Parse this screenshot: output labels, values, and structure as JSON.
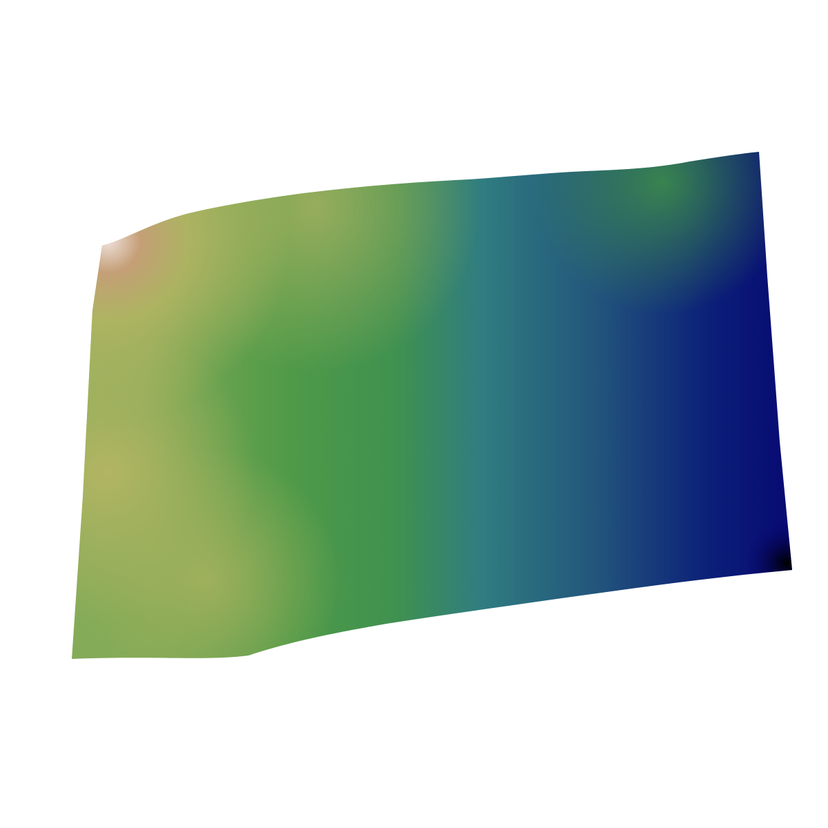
{
  "scene": {
    "background_color": "#ffffff",
    "surface_type": "3d-terrain-surface",
    "colormap": "gist_earth",
    "colormap_stops": [
      {
        "position": 0.0,
        "color": "#000000"
      },
      {
        "position": 0.08,
        "color": "#070070"
      },
      {
        "position": 0.2,
        "color": "#15287a"
      },
      {
        "position": 0.35,
        "color": "#307d80"
      },
      {
        "position": 0.5,
        "color": "#3f9148"
      },
      {
        "position": 0.62,
        "color": "#5d9f4b"
      },
      {
        "position": 0.75,
        "color": "#8aae5c"
      },
      {
        "position": 0.87,
        "color": "#b8b664"
      },
      {
        "position": 0.95,
        "color": "#c89e78"
      },
      {
        "position": 1.0,
        "color": "#f0e2df"
      }
    ]
  }
}
